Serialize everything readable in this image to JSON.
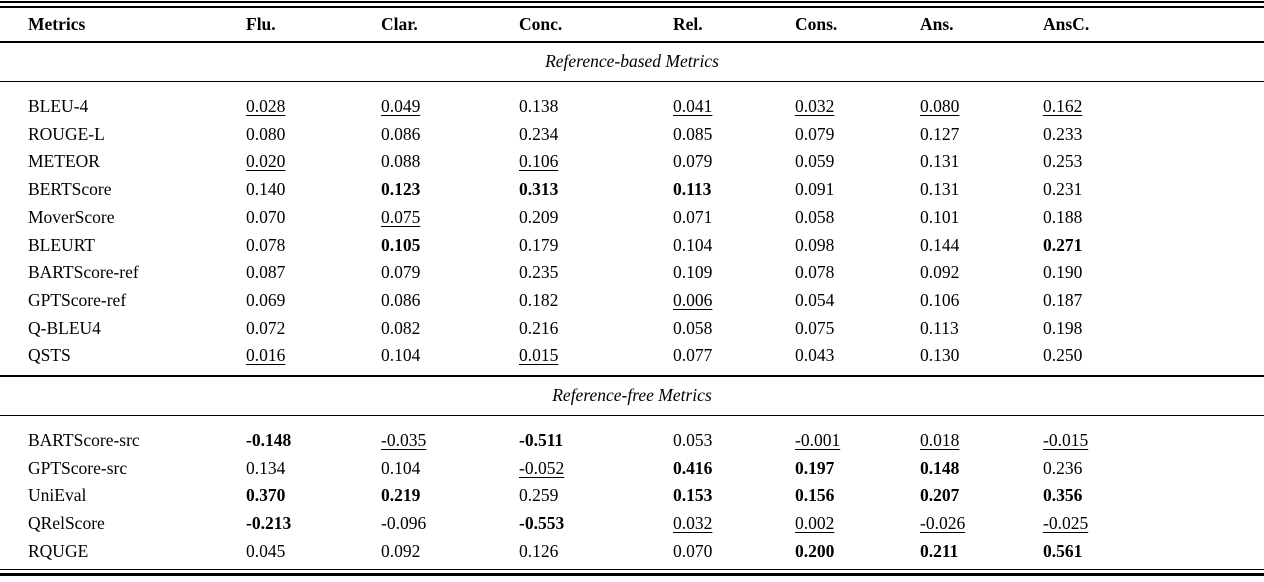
{
  "colors": {
    "background": "#ffffff",
    "text": "#000000",
    "rules": "#000000"
  },
  "table": {
    "columns": [
      "Metrics",
      "Flu.",
      "Clar.",
      "Conc.",
      "Rel.",
      "Cons.",
      "Ans.",
      "AnsC."
    ],
    "sections": [
      {
        "title": "Reference-based Metrics",
        "rows": [
          {
            "metric": "BLEU-4",
            "values": [
              {
                "text": "0.028",
                "style": "underline"
              },
              {
                "text": "0.049",
                "style": "underline"
              },
              {
                "text": "0.138",
                "style": "plain"
              },
              {
                "text": "0.041",
                "style": "underline"
              },
              {
                "text": "0.032",
                "style": "underline"
              },
              {
                "text": "0.080",
                "style": "underline"
              },
              {
                "text": "0.162",
                "style": "underline"
              }
            ]
          },
          {
            "metric": "ROUGE-L",
            "values": [
              {
                "text": "0.080",
                "style": "plain"
              },
              {
                "text": "0.086",
                "style": "plain"
              },
              {
                "text": "0.234",
                "style": "plain"
              },
              {
                "text": "0.085",
                "style": "plain"
              },
              {
                "text": "0.079",
                "style": "plain"
              },
              {
                "text": "0.127",
                "style": "plain"
              },
              {
                "text": "0.233",
                "style": "plain"
              }
            ]
          },
          {
            "metric": "METEOR",
            "values": [
              {
                "text": "0.020",
                "style": "underline"
              },
              {
                "text": "0.088",
                "style": "plain"
              },
              {
                "text": "0.106",
                "style": "underline"
              },
              {
                "text": "0.079",
                "style": "plain"
              },
              {
                "text": "0.059",
                "style": "plain"
              },
              {
                "text": "0.131",
                "style": "plain"
              },
              {
                "text": "0.253",
                "style": "plain"
              }
            ]
          },
          {
            "metric": "BERTScore",
            "values": [
              {
                "text": "0.140",
                "style": "plain"
              },
              {
                "text": "0.123",
                "style": "bold"
              },
              {
                "text": "0.313",
                "style": "bold"
              },
              {
                "text": "0.113",
                "style": "bold"
              },
              {
                "text": "0.091",
                "style": "plain"
              },
              {
                "text": "0.131",
                "style": "plain"
              },
              {
                "text": "0.231",
                "style": "plain"
              }
            ]
          },
          {
            "metric": "MoverScore",
            "values": [
              {
                "text": "0.070",
                "style": "plain"
              },
              {
                "text": "0.075",
                "style": "underline"
              },
              {
                "text": "0.209",
                "style": "plain"
              },
              {
                "text": "0.071",
                "style": "plain"
              },
              {
                "text": "0.058",
                "style": "plain"
              },
              {
                "text": "0.101",
                "style": "plain"
              },
              {
                "text": "0.188",
                "style": "plain"
              }
            ]
          },
          {
            "metric": "BLEURT",
            "values": [
              {
                "text": "0.078",
                "style": "plain"
              },
              {
                "text": "0.105",
                "style": "bold"
              },
              {
                "text": "0.179",
                "style": "plain"
              },
              {
                "text": "0.104",
                "style": "plain"
              },
              {
                "text": "0.098",
                "style": "plain"
              },
              {
                "text": "0.144",
                "style": "plain"
              },
              {
                "text": "0.271",
                "style": "bold"
              }
            ]
          },
          {
            "metric": "BARTScore-ref",
            "values": [
              {
                "text": "0.087",
                "style": "plain"
              },
              {
                "text": "0.079",
                "style": "plain"
              },
              {
                "text": "0.235",
                "style": "plain"
              },
              {
                "text": "0.109",
                "style": "plain"
              },
              {
                "text": "0.078",
                "style": "plain"
              },
              {
                "text": "0.092",
                "style": "plain"
              },
              {
                "text": "0.190",
                "style": "plain"
              }
            ]
          },
          {
            "metric": "GPTScore-ref",
            "values": [
              {
                "text": "0.069",
                "style": "plain"
              },
              {
                "text": "0.086",
                "style": "plain"
              },
              {
                "text": "0.182",
                "style": "plain"
              },
              {
                "text": "0.006",
                "style": "underline"
              },
              {
                "text": "0.054",
                "style": "plain"
              },
              {
                "text": "0.106",
                "style": "plain"
              },
              {
                "text": "0.187",
                "style": "plain"
              }
            ]
          },
          {
            "metric": "Q-BLEU4",
            "values": [
              {
                "text": "0.072",
                "style": "plain"
              },
              {
                "text": "0.082",
                "style": "plain"
              },
              {
                "text": "0.216",
                "style": "plain"
              },
              {
                "text": "0.058",
                "style": "plain"
              },
              {
                "text": "0.075",
                "style": "plain"
              },
              {
                "text": "0.113",
                "style": "plain"
              },
              {
                "text": "0.198",
                "style": "plain"
              }
            ]
          },
          {
            "metric": "QSTS",
            "values": [
              {
                "text": "0.016",
                "style": "underline"
              },
              {
                "text": "0.104",
                "style": "plain"
              },
              {
                "text": "0.015",
                "style": "underline"
              },
              {
                "text": "0.077",
                "style": "plain"
              },
              {
                "text": "0.043",
                "style": "plain"
              },
              {
                "text": "0.130",
                "style": "plain"
              },
              {
                "text": "0.250",
                "style": "plain"
              }
            ]
          }
        ]
      },
      {
        "title": "Reference-free Metrics",
        "rows": [
          {
            "metric": "BARTScore-src",
            "values": [
              {
                "text": "-0.148",
                "style": "bold"
              },
              {
                "text": "-0.035",
                "style": "underline"
              },
              {
                "text": "-0.511",
                "style": "bold"
              },
              {
                "text": "0.053",
                "style": "plain"
              },
              {
                "text": "-0.001",
                "style": "underline"
              },
              {
                "text": "0.018",
                "style": "underline"
              },
              {
                "text": "-0.015",
                "style": "underline"
              }
            ]
          },
          {
            "metric": "GPTScore-src",
            "values": [
              {
                "text": "0.134",
                "style": "plain"
              },
              {
                "text": "0.104",
                "style": "plain"
              },
              {
                "text": "-0.052",
                "style": "underline"
              },
              {
                "text": "0.416",
                "style": "bold"
              },
              {
                "text": "0.197",
                "style": "bold"
              },
              {
                "text": "0.148",
                "style": "bold"
              },
              {
                "text": "0.236",
                "style": "plain"
              }
            ]
          },
          {
            "metric": "UniEval",
            "values": [
              {
                "text": "0.370",
                "style": "bold"
              },
              {
                "text": "0.219",
                "style": "bold"
              },
              {
                "text": "0.259",
                "style": "plain"
              },
              {
                "text": "0.153",
                "style": "bold"
              },
              {
                "text": "0.156",
                "style": "bold"
              },
              {
                "text": "0.207",
                "style": "bold"
              },
              {
                "text": "0.356",
                "style": "bold"
              }
            ]
          },
          {
            "metric": "QRelScore",
            "values": [
              {
                "text": "-0.213",
                "style": "bold"
              },
              {
                "text": "-0.096",
                "style": "plain"
              },
              {
                "text": "-0.553",
                "style": "bold"
              },
              {
                "text": "0.032",
                "style": "underline"
              },
              {
                "text": "0.002",
                "style": "underline"
              },
              {
                "text": "-0.026",
                "style": "underline"
              },
              {
                "text": "-0.025",
                "style": "underline"
              }
            ]
          },
          {
            "metric": "RQUGE",
            "values": [
              {
                "text": "0.045",
                "style": "plain"
              },
              {
                "text": "0.092",
                "style": "plain"
              },
              {
                "text": "0.126",
                "style": "plain"
              },
              {
                "text": "0.070",
                "style": "plain"
              },
              {
                "text": "0.200",
                "style": "bold"
              },
              {
                "text": "0.211",
                "style": "bold"
              },
              {
                "text": "0.561",
                "style": "bold"
              }
            ]
          }
        ]
      }
    ]
  }
}
